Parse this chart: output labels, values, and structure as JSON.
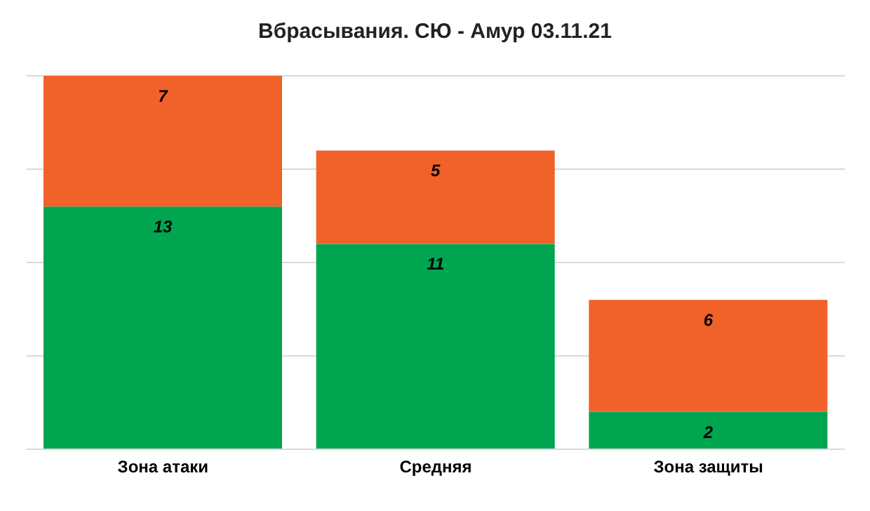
{
  "chart_data": {
    "type": "bar",
    "title": "Вбрасывания. СЮ - Амур 03.11.21",
    "categories": [
      "Зона атаки",
      "Средняя",
      "Зона защиты"
    ],
    "stacked": true,
    "series": [
      {
        "color": "#00a550",
        "values": [
          13,
          11,
          2
        ]
      },
      {
        "color": "#f1612a",
        "values": [
          7,
          5,
          6
        ]
      }
    ],
    "ylim": [
      0,
      20
    ],
    "tick_labels": "x",
    "grid": "y",
    "data_labels": true
  }
}
